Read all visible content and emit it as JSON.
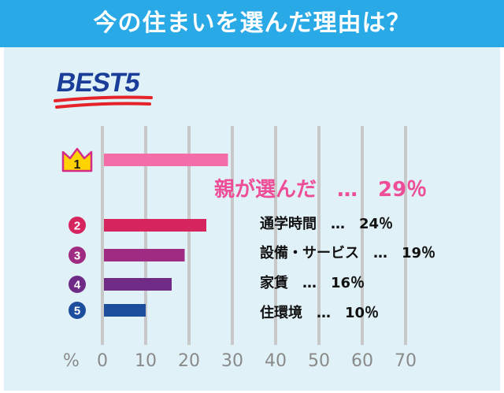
{
  "header": {
    "title": "今の住まいを選んだ理由は？"
  },
  "badge": {
    "text": "BEST5"
  },
  "chart_data": {
    "type": "bar",
    "orientation": "horizontal",
    "categories": [
      "親が選んだ",
      "通学時間",
      "設備・サービス",
      "家賃",
      "住環境"
    ],
    "values": [
      29,
      24,
      19,
      16,
      10
    ],
    "ranks": [
      "1",
      "2",
      "3",
      "4",
      "5"
    ],
    "xlim": [
      0,
      70
    ],
    "xticks": [
      "0",
      "10",
      "20",
      "30",
      "40",
      "50",
      "60",
      "70"
    ],
    "unit_label": "%",
    "grid": true,
    "value_labels": [
      "親が選んだ　…　29％",
      "通学時間　…　24％",
      "設備・サービス　…　19％",
      "家賃　…　16％",
      "住環境　…　10％"
    ],
    "colors": [
      "#f36ea9",
      "#d6245f",
      "#a02b82",
      "#6f2b86",
      "#1d4e9e"
    ]
  }
}
